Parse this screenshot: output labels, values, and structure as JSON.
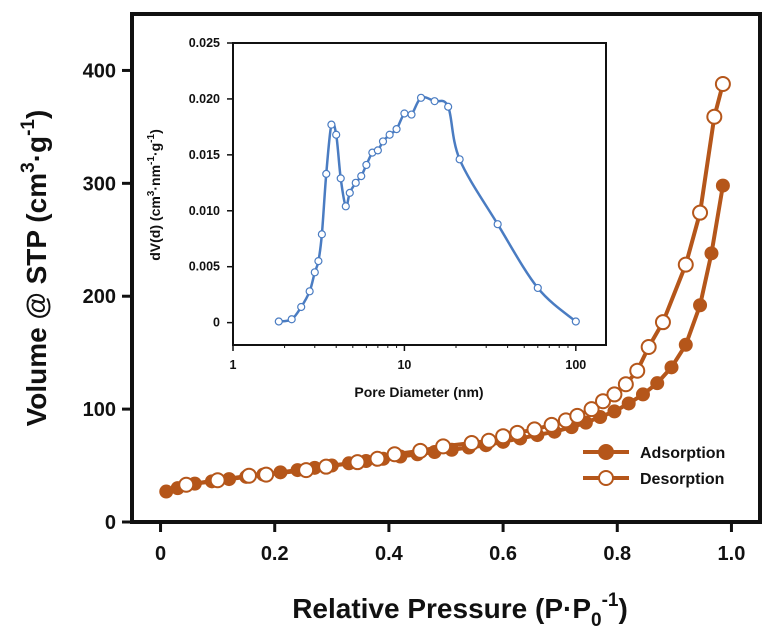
{
  "chart_data": [
    {
      "type": "line",
      "xlabel": "Relative Pressure  (P·P",
      "xlabel_sub": "0",
      "xlabel_sup": "-1",
      "xlabel_end": ")",
      "ylabel": "Volume @ STP  (cm",
      "ylabel_sup1": "3",
      "ylabel_mid": "·g",
      "ylabel_sup2": "-1",
      "ylabel_end": ")",
      "xlim": [
        -0.05,
        1.05
      ],
      "ylim": [
        0,
        450
      ],
      "xticks": [
        "0",
        "0.2",
        "0.4",
        "0.6",
        "0.8",
        "1.0"
      ],
      "xtick_values": [
        0,
        0.2,
        0.4,
        0.6,
        0.8,
        1.0
      ],
      "yticks": [
        "0",
        "100",
        "200",
        "300",
        "400"
      ],
      "ytick_values": [
        0,
        100,
        200,
        300,
        400
      ],
      "legend_position": "bottom-right",
      "line_color": "#b5561a",
      "series": [
        {
          "name": "Adsorption",
          "marker": "filled-circle",
          "x": [
            0.01,
            0.03,
            0.06,
            0.09,
            0.12,
            0.15,
            0.18,
            0.21,
            0.24,
            0.27,
            0.3,
            0.33,
            0.36,
            0.39,
            0.42,
            0.45,
            0.48,
            0.51,
            0.54,
            0.57,
            0.6,
            0.63,
            0.66,
            0.69,
            0.72,
            0.745,
            0.77,
            0.795,
            0.82,
            0.845,
            0.87,
            0.895,
            0.92,
            0.945,
            0.965,
            0.985
          ],
          "y": [
            27,
            30,
            34,
            36,
            38,
            40,
            42,
            44,
            46,
            48,
            50,
            52,
            54,
            56,
            58,
            60,
            62,
            64,
            66,
            68,
            71,
            74,
            77,
            80,
            84,
            88,
            93,
            98,
            105,
            113,
            123,
            137,
            157,
            192,
            238,
            298
          ]
        },
        {
          "name": "Desorption",
          "marker": "open-circle",
          "x": [
            0.045,
            0.1,
            0.155,
            0.185,
            0.255,
            0.29,
            0.345,
            0.38,
            0.41,
            0.455,
            0.495,
            0.545,
            0.575,
            0.6,
            0.625,
            0.655,
            0.685,
            0.71,
            0.73,
            0.755,
            0.775,
            0.795,
            0.815,
            0.835,
            0.855,
            0.88,
            0.92,
            0.945,
            0.97,
            0.985
          ],
          "y": [
            33,
            37,
            41,
            42,
            46,
            49,
            53,
            56,
            60,
            63,
            67,
            70,
            72,
            76,
            79,
            82,
            86,
            90,
            94,
            100,
            107,
            113,
            122,
            134,
            155,
            177,
            228,
            274,
            359,
            388
          ]
        }
      ]
    },
    {
      "type": "line",
      "xscale": "log",
      "xlabel": "Pore Diameter  (nm)",
      "ylabel": "dV(d)  (cm",
      "ylabel_sup1": "3",
      "ylabel_mid": "·nm",
      "ylabel_sup2": "-1",
      "ylabel_mid2": "·g",
      "ylabel_sup3": "-1",
      "ylabel_end": ")",
      "xlim": [
        1,
        150
      ],
      "ylim": [
        -0.002,
        0.025
      ],
      "xticks": [
        "1",
        "10",
        "100"
      ],
      "xtick_values": [
        1,
        10,
        100
      ],
      "yticks": [
        "0",
        "0.005",
        "0.010",
        "0.015",
        "0.020",
        "0.025"
      ],
      "ytick_values": [
        0,
        0.005,
        0.01,
        0.015,
        0.02,
        0.025
      ],
      "line_color": "#4a7cc2",
      "marker": "open-circle",
      "series": [
        {
          "x": [
            1.85,
            2.2,
            2.5,
            2.8,
            3.0,
            3.15,
            3.3,
            3.5,
            3.75,
            4.0,
            4.25,
            4.55,
            4.8,
            5.2,
            5.6,
            6.0,
            6.5,
            7.0,
            7.5,
            8.2,
            9.0,
            10.0,
            11.0,
            12.5,
            15.0,
            18.0,
            21.0,
            35.0,
            60.0,
            100.0
          ],
          "y": [
            0.0001,
            0.0003,
            0.0014,
            0.0028,
            0.0045,
            0.0055,
            0.0079,
            0.0133,
            0.0177,
            0.0168,
            0.0129,
            0.0104,
            0.0116,
            0.0125,
            0.0131,
            0.0141,
            0.0152,
            0.0154,
            0.0162,
            0.0168,
            0.0173,
            0.0187,
            0.0186,
            0.0201,
            0.0198,
            0.0193,
            0.0146,
            0.0088,
            0.0031,
            0.0001
          ]
        }
      ]
    }
  ]
}
